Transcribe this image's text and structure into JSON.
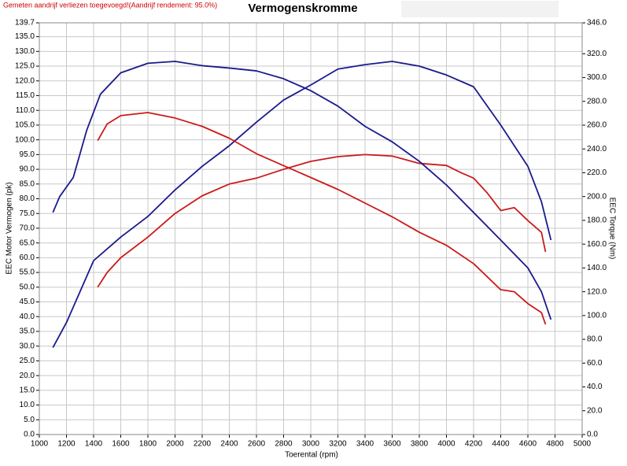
{
  "chart_data": {
    "type": "line",
    "title": "Vermogenskromme",
    "note": "Gemeten aandrijf verliezen toegevoegd!(Aandrijf rendement: 95.0%)",
    "x_label": "Toerental (rpm)",
    "y_label": "EEC Motor Vermogen (pk)",
    "y2_label": "EEC Torque (Nm)",
    "grid": true,
    "xlim": [
      1000,
      5000
    ],
    "xticks": [
      1000,
      1200,
      1400,
      1600,
      1800,
      2000,
      2200,
      2400,
      2600,
      2800,
      3000,
      3200,
      3400,
      3600,
      3800,
      4000,
      4200,
      4400,
      4600,
      4800,
      5000
    ],
    "ylim": [
      0,
      139.7
    ],
    "yticks": [
      {
        "value": 0,
        "label": "0.0"
      },
      {
        "value": 5,
        "label": "5.0"
      },
      {
        "value": 10,
        "label": "10.0"
      },
      {
        "value": 15,
        "label": "15.0"
      },
      {
        "value": 20,
        "label": "20.0"
      },
      {
        "value": 25,
        "label": "25.0"
      },
      {
        "value": 30,
        "label": "30.0"
      },
      {
        "value": 35,
        "label": "35.0"
      },
      {
        "value": 40,
        "label": "40.0"
      },
      {
        "value": 45,
        "label": "45.0"
      },
      {
        "value": 50,
        "label": "50.0"
      },
      {
        "value": 55,
        "label": "55.0"
      },
      {
        "value": 60,
        "label": "60.0"
      },
      {
        "value": 65,
        "label": "65.0"
      },
      {
        "value": 70,
        "label": "70.0"
      },
      {
        "value": 75,
        "label": "75.0"
      },
      {
        "value": 80,
        "label": "80.0"
      },
      {
        "value": 85,
        "label": "85.0"
      },
      {
        "value": 90,
        "label": "90.0"
      },
      {
        "value": 95,
        "label": "95.0"
      },
      {
        "value": 100,
        "label": "100.0"
      },
      {
        "value": 105,
        "label": "105.0"
      },
      {
        "value": 110,
        "label": "110.0"
      },
      {
        "value": 115,
        "label": "115.0"
      },
      {
        "value": 120,
        "label": "120.0"
      },
      {
        "value": 125,
        "label": "125.0"
      },
      {
        "value": 130,
        "label": "130.0"
      },
      {
        "value": 135,
        "label": "135.0"
      },
      139.7
    ],
    "y2lim": [
      0,
      346
    ],
    "y2ticks": [
      {
        "value": 0,
        "label": "0.0"
      },
      {
        "value": 20,
        "label": "20.0"
      },
      {
        "value": 40,
        "label": "40.0"
      },
      {
        "value": 60,
        "label": "60.0"
      },
      {
        "value": 80,
        "label": "80.0"
      },
      {
        "value": 100,
        "label": "100.0"
      },
      {
        "value": 120,
        "label": "120.0"
      },
      {
        "value": 140,
        "label": "140.0"
      },
      {
        "value": 160,
        "label": "160.0"
      },
      {
        "value": 180,
        "label": "180.0"
      },
      {
        "value": 200,
        "label": "200.0"
      },
      {
        "value": 220,
        "label": "220.0"
      },
      {
        "value": 240,
        "label": "240.0"
      },
      {
        "value": 260,
        "label": "260.0"
      },
      {
        "value": 280,
        "label": "280.0"
      },
      {
        "value": 300,
        "label": "300.0"
      },
      {
        "value": 320,
        "label": "320.0"
      },
      {
        "value": 346,
        "label": "346.0"
      }
    ],
    "series": [
      {
        "color": "#1a1a8c",
        "axis": "y",
        "x": [
          1100,
          1200,
          1400,
          1600,
          1800,
          2000,
          2200,
          2400,
          2600,
          2800,
          3000,
          3200,
          3400,
          3600,
          3800,
          4000,
          4200,
          4400,
          4500,
          4600,
          4700,
          4770
        ],
        "values": [
          29.5,
          38,
          59,
          67,
          74,
          83,
          91,
          98,
          106,
          113.5,
          118.6,
          124,
          125.5,
          126.6,
          125,
          122,
          118,
          105,
          98,
          91,
          79,
          66
        ]
      },
      {
        "color": "#cc1a1a",
        "axis": "y",
        "x": [
          1430,
          1500,
          1600,
          1800,
          2000,
          2200,
          2400,
          2600,
          2800,
          3000,
          3200,
          3400,
          3600,
          3800,
          4000,
          4100,
          4200,
          4300,
          4400,
          4500,
          4600,
          4700,
          4730
        ],
        "values": [
          50,
          55,
          60,
          67,
          75,
          81,
          85,
          87,
          90,
          92.7,
          94.3,
          95,
          94.5,
          92,
          91.3,
          89,
          87,
          82,
          76,
          77,
          72.6,
          68.6,
          62
        ]
      },
      {
        "color": "#1a1a8c",
        "axis": "y2",
        "x": [
          1100,
          1150,
          1250,
          1350,
          1450,
          1600,
          1800,
          2000,
          2200,
          2400,
          2600,
          2800,
          3000,
          3200,
          3400,
          3600,
          3800,
          4000,
          4200,
          4400,
          4600,
          4700,
          4770
        ],
        "values": [
          186.6,
          200,
          216,
          256,
          286,
          304,
          312,
          313.6,
          310,
          308,
          305.6,
          299,
          289,
          276,
          259,
          246,
          229.6,
          209.7,
          186.6,
          163.4,
          140,
          120,
          96.6
        ]
      },
      {
        "color": "#cc1a1a",
        "axis": "y2",
        "x": [
          1430,
          1500,
          1600,
          1800,
          2000,
          2200,
          2400,
          2600,
          2800,
          3000,
          3200,
          3400,
          3600,
          3800,
          4000,
          4200,
          4400,
          4500,
          4600,
          4700,
          4730
        ],
        "values": [
          247,
          261,
          268,
          270.6,
          266,
          259,
          249,
          236,
          226,
          216,
          206,
          194.5,
          183,
          170,
          159,
          143.6,
          121.7,
          120,
          110,
          102.5,
          92.6
        ]
      }
    ]
  }
}
